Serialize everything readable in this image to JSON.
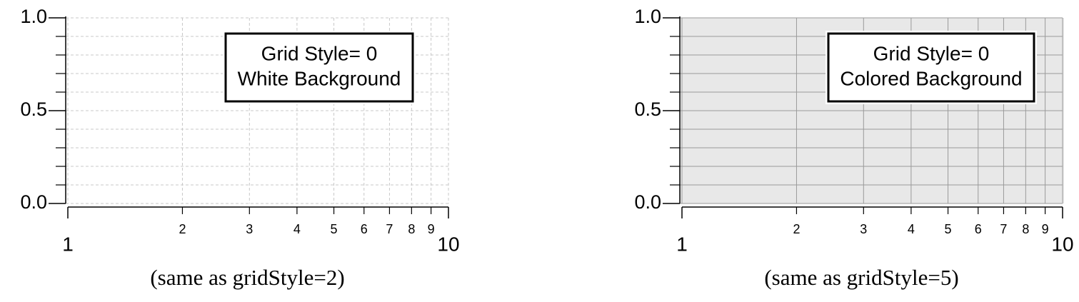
{
  "chart_data": [
    {
      "type": "line",
      "log_x": true,
      "grid": true,
      "grid_line": "dashed",
      "grid_color": "#c8c8c8",
      "background": "#ffffff",
      "annotation": [
        "Grid Style= 0",
        "White Background"
      ],
      "caption": "(same as gridStyle=2)",
      "xlim": [
        1,
        10
      ],
      "xticks": [
        1,
        10
      ],
      "xminor_ticks": [
        2,
        3,
        4,
        5,
        6,
        7,
        8,
        9
      ],
      "ylim": [
        0,
        1
      ],
      "yticks": [
        {
          "value": 0,
          "label": "0.0"
        },
        {
          "value": 0.5,
          "label": "0.5"
        },
        {
          "value": 1,
          "label": "1.0"
        }
      ],
      "yminor_ticks": [
        0.1,
        0.2,
        0.3,
        0.4,
        0.6,
        0.7,
        0.8,
        0.9
      ]
    },
    {
      "type": "line",
      "log_x": true,
      "grid": true,
      "grid_line": "solid",
      "grid_color": "#9a9a9a",
      "background": "#e8e8e8",
      "annotation": [
        "Grid Style= 0",
        "Colored Background"
      ],
      "caption": "(same as gridStyle=5)",
      "xlim": [
        1,
        10
      ],
      "xticks": [
        1,
        10
      ],
      "xminor_ticks": [
        2,
        3,
        4,
        5,
        6,
        7,
        8,
        9
      ],
      "ylim": [
        0,
        1
      ],
      "yticks": [
        {
          "value": 0,
          "label": "0.0"
        },
        {
          "value": 0.5,
          "label": "0.5"
        },
        {
          "value": 1,
          "label": "1.0"
        }
      ],
      "yminor_ticks": [
        0.1,
        0.2,
        0.3,
        0.4,
        0.6,
        0.7,
        0.8,
        0.9
      ]
    }
  ]
}
